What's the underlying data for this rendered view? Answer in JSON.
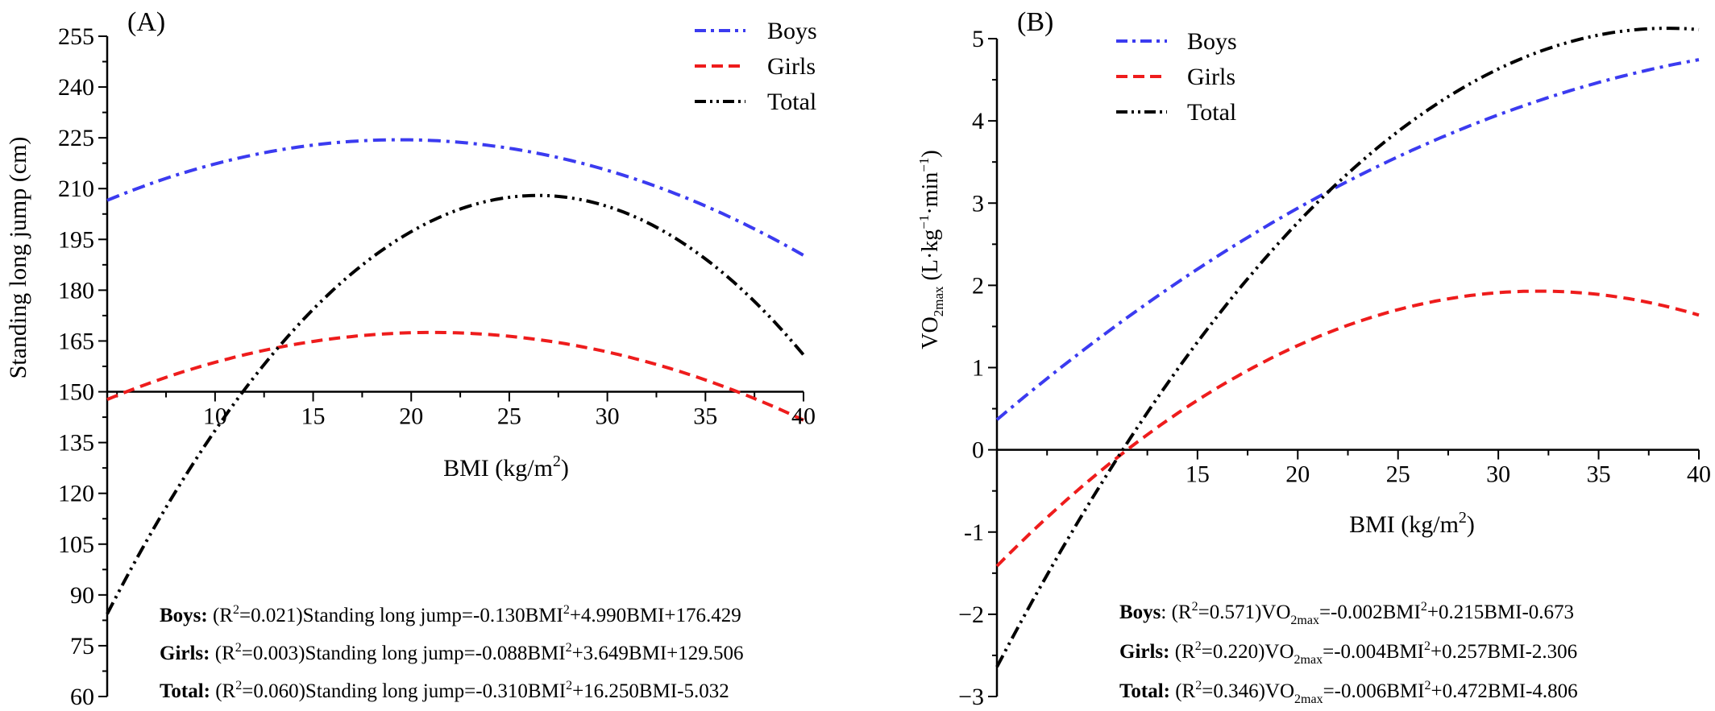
{
  "chart_data": [
    {
      "type": "line",
      "panel_label": "(A)",
      "xlabel_main": "BMI (kg/m",
      "xlabel_sup": "2",
      "xlabel_tail": ")",
      "ylabel": "Standing long jump (cm)",
      "xlim": [
        4.5,
        40
      ],
      "ylim": [
        60,
        255
      ],
      "x_crosses_at": 150,
      "xticks": [
        10,
        15,
        20,
        25,
        30,
        35,
        40
      ],
      "yticks": [
        60,
        75,
        90,
        105,
        120,
        135,
        150,
        165,
        180,
        195,
        210,
        225,
        240,
        255
      ],
      "legend_position": "top-right",
      "series": [
        {
          "name": "Boys",
          "color": "#3b3bf0",
          "dash": "dashdot",
          "coef": [
            -0.13,
            4.99,
            176.429
          ],
          "curve_x": [
            4.5,
            40
          ],
          "visible_coef": [
            -0.0805,
            3.125,
            194.1
          ]
        },
        {
          "name": "Girls",
          "color": "#ee1c1c",
          "dash": "dash",
          "coef": [
            -0.088,
            3.649,
            129.506
          ],
          "curve_x": [
            4.5,
            40
          ],
          "visible_coef": [
            -0.0722,
            3.041,
            135.5
          ]
        },
        {
          "name": "Total",
          "color": "#000000",
          "dash": "dashdotdot",
          "coef": [
            -0.31,
            16.25,
            -5.032
          ],
          "curve_x": [
            4.5,
            40
          ],
          "visible_coef": [
            -0.2565,
            13.57,
            28.5
          ]
        }
      ],
      "equations": [
        {
          "group": "Boys:",
          "r2": "=0.021)",
          "lhs": "Standing long jump=-0.130BMI",
          "rhs": "+4.990BMI+176.429"
        },
        {
          "group": "Girls:",
          "r2": "=0.003)",
          "lhs": "Standing long jump=-0.088BMI",
          "rhs": "+3.649BMI+129.506"
        },
        {
          "group": "Total:",
          "r2": "=0.060)",
          "lhs": "Standing long jump=-0.310BMI",
          "rhs": "+16.250BMI-5.032"
        }
      ]
    },
    {
      "type": "line",
      "panel_label": "(B)",
      "xlabel_main": "BMI (kg/m",
      "xlabel_sup": "2",
      "xlabel_tail": ")",
      "ylabel": "VO2max (L·kg−1·min−1)",
      "xlim": [
        5,
        40
      ],
      "ylim": [
        -3,
        5
      ],
      "x_crosses_at": 0,
      "xticks": [
        15,
        20,
        25,
        30,
        35,
        40
      ],
      "yticks": [
        -3,
        -2,
        -1,
        0,
        1,
        2,
        3,
        4,
        5
      ],
      "ytick_labels": [
        "−3",
        "−2",
        "-1",
        "0",
        "1",
        "2",
        "3",
        "4",
        "5"
      ],
      "legend_position": "top-left",
      "series": [
        {
          "name": "Boys",
          "color": "#3b3bf0",
          "dash": "dashdot",
          "coef": [
            -0.002,
            0.215,
            -0.673
          ],
          "curve_x": [
            5,
            40
          ],
          "visible_coef": [
            -0.00232,
            0.2295,
            -0.7234
          ]
        },
        {
          "name": "Girls",
          "color": "#ee1c1c",
          "dash": "dash",
          "coef": [
            -0.004,
            0.257,
            -2.306
          ],
          "curve_x": [
            5,
            40
          ],
          "visible_coef": [
            -0.00458,
            0.2933,
            -2.766
          ]
        },
        {
          "name": "Total",
          "color": "#000000",
          "dash": "dashdotdot",
          "coef": [
            -0.006,
            0.472,
            -4.806
          ],
          "curve_x": [
            5,
            40
          ],
          "visible_coef": [
            -0.00694,
            0.5337,
            -5.1342
          ]
        }
      ],
      "equations": [
        {
          "group": "Boys",
          "r2": "=0.571)VO",
          "sub": "2max",
          "mid": "=-0.002BMI",
          "rhs": "+0.215BMI-0.673",
          "sep": ": "
        },
        {
          "group": "Girls:",
          "r2": "=0.220)VO",
          "sub": "2max",
          "mid": "=-0.004BMI",
          "rhs": "+0.257BMI-2.306",
          "sep": " "
        },
        {
          "group": "Total:",
          "r2": "=0.346)VO",
          "sub": "2max",
          "mid": "=-0.006BMI",
          "rhs": "+0.472BMI-4.806",
          "sep": " "
        }
      ]
    }
  ]
}
